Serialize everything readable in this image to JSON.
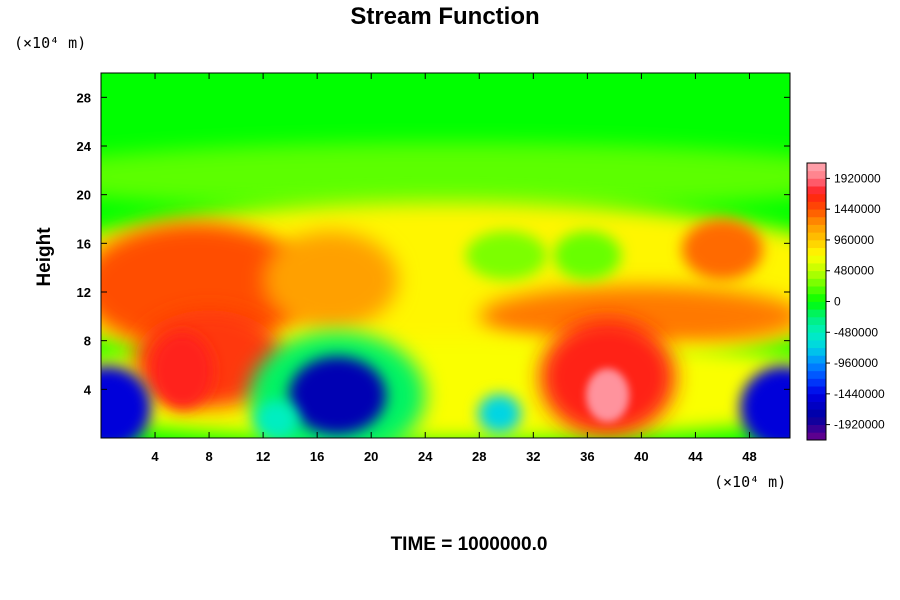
{
  "chart_data": {
    "type": "heatmap",
    "title": "Stream Function",
    "ylabel": "Height",
    "x_unit": "(×10⁴ m)",
    "y_unit": "(×10⁴ m)",
    "footer": "TIME = 1000000.0",
    "xlim": [
      0,
      51
    ],
    "ylim": [
      0,
      30
    ],
    "x_ticks": [
      "4",
      "8",
      "12",
      "16",
      "20",
      "24",
      "28",
      "32",
      "36",
      "40",
      "44",
      "48"
    ],
    "y_ticks": [
      "4",
      "8",
      "12",
      "16",
      "20",
      "24",
      "28"
    ],
    "colorbar": {
      "vmin": -2160000,
      "vmax": 2160000,
      "tick_labels": [
        "1920000",
        "1440000",
        "960000",
        "480000",
        "0",
        "-480000",
        "-960000",
        "-1440000",
        "-1920000"
      ]
    },
    "features": [
      {
        "x": 37.5,
        "y": 3.5,
        "value": 2050000,
        "label": "maximum (white)"
      },
      {
        "x": 6.0,
        "y": 5.5,
        "value": 1700000,
        "label": "high"
      },
      {
        "x": 17.5,
        "y": 3.5,
        "value": -1700000,
        "label": "minimum"
      },
      {
        "x": 0.5,
        "y": 2.5,
        "value": -1500000,
        "label": "low"
      },
      {
        "x": 50.5,
        "y": 2.5,
        "value": -1500000,
        "label": "low"
      },
      {
        "x": 29.5,
        "y": 2.0,
        "value": -700000,
        "label": "low"
      },
      {
        "x": 13.0,
        "y": 1.5,
        "value": -500000,
        "label": "low"
      }
    ]
  }
}
